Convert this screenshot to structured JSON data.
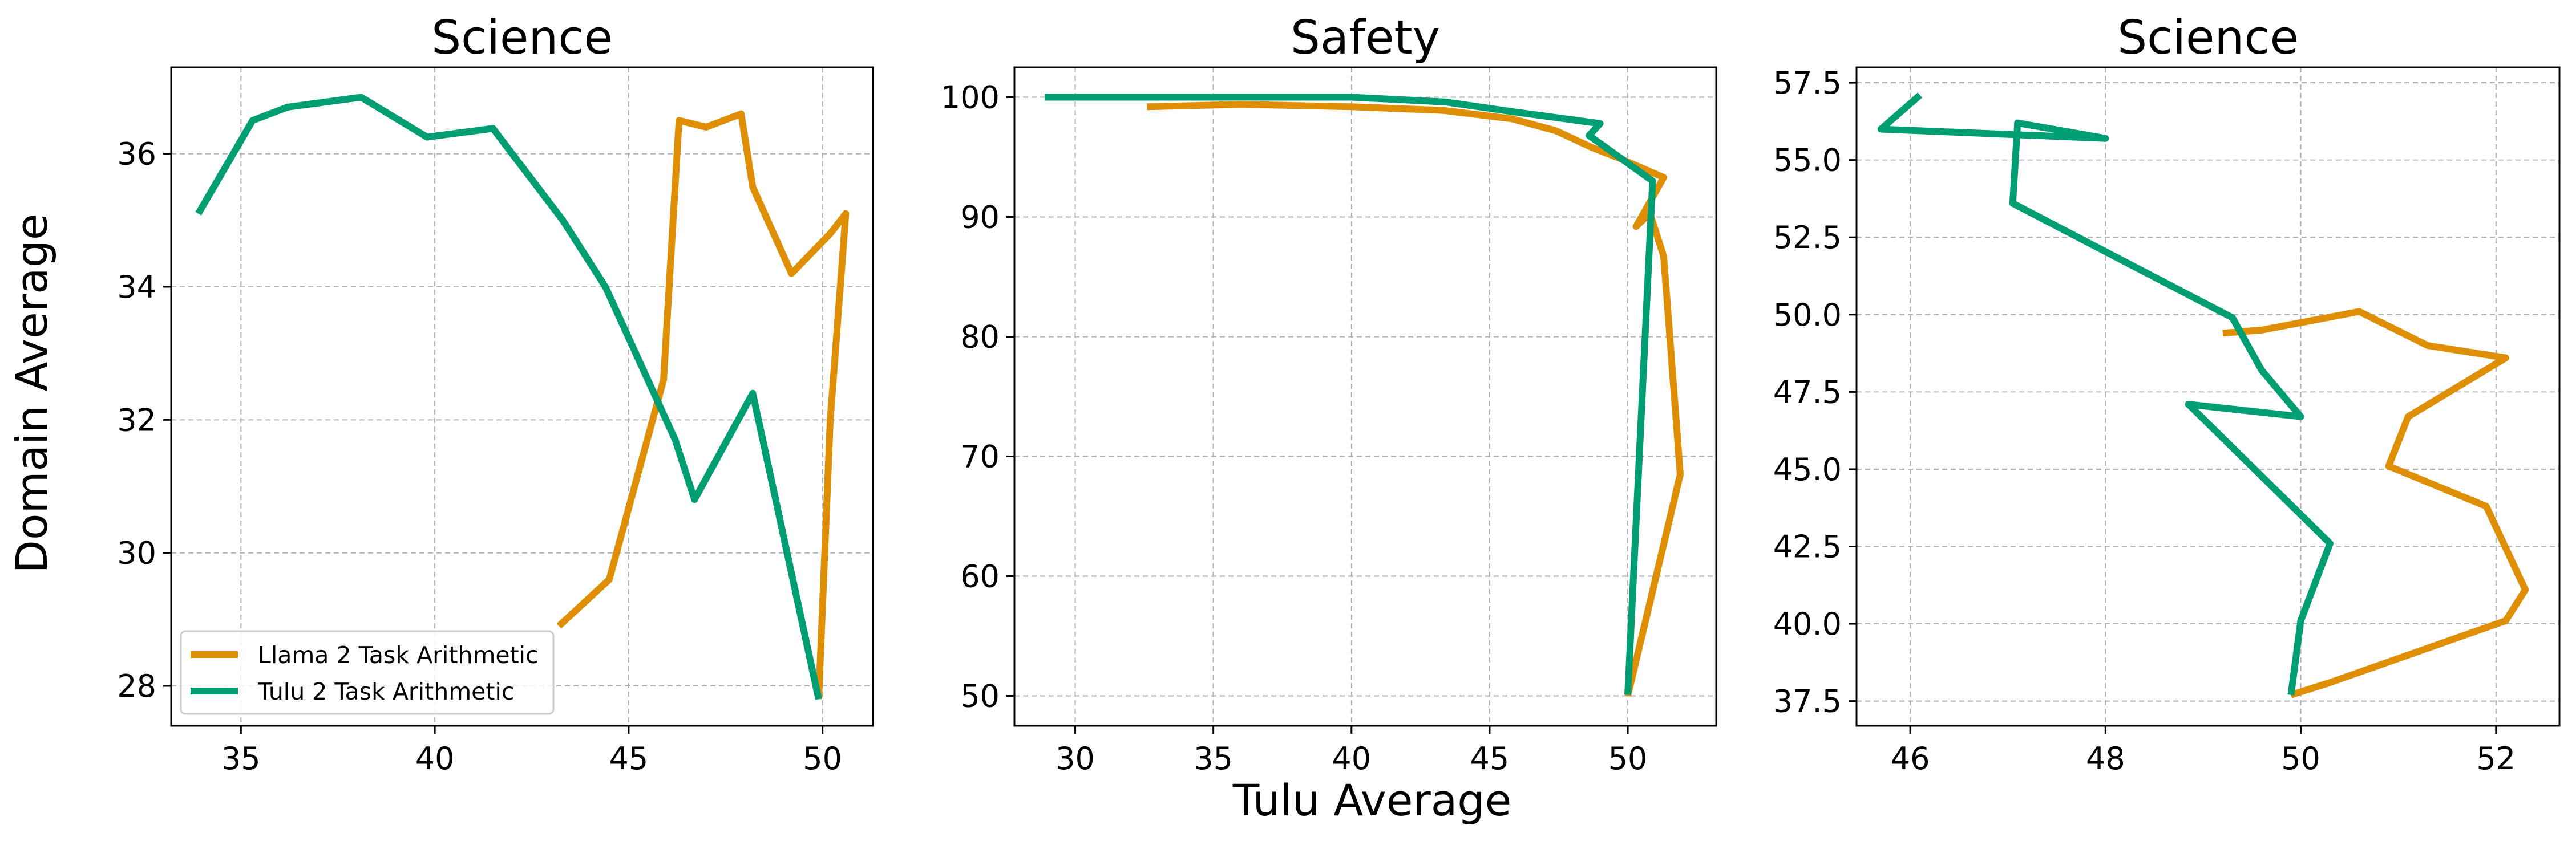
{
  "figure": {
    "ylabel": "Domain Average",
    "xlabel": "Tulu Average"
  },
  "legend": {
    "items": [
      {
        "label": "Llama 2 Task Arithmetic",
        "color": "#de8f05"
      },
      {
        "label": "Tulu 2 Task Arithmetic",
        "color": "#029e73"
      }
    ]
  },
  "chart_data": [
    {
      "type": "line",
      "title": "Science",
      "xlabel": "",
      "ylabel": "Domain Average",
      "xlim": [
        33.2,
        51.3
      ],
      "ylim": [
        27.4,
        37.3
      ],
      "xticks": [
        35,
        40,
        45,
        50
      ],
      "yticks": [
        28,
        30,
        32,
        34,
        36
      ],
      "grid": true,
      "legend_position": "lower-left",
      "series": [
        {
          "name": "Llama 2 Task Arithmetic",
          "color": "#de8f05",
          "points": [
            [
              43.2,
              28.9
            ],
            [
              44.5,
              29.6
            ],
            [
              45.9,
              32.6
            ],
            [
              46.3,
              36.5
            ],
            [
              47.0,
              36.4
            ],
            [
              47.9,
              36.6
            ],
            [
              48.2,
              35.5
            ],
            [
              49.2,
              34.2
            ],
            [
              50.2,
              34.8
            ],
            [
              50.6,
              35.1
            ],
            [
              50.2,
              32.0
            ],
            [
              49.9,
              27.8
            ]
          ]
        },
        {
          "name": "Tulu 2 Task Arithmetic",
          "color": "#029e73",
          "points": [
            [
              33.9,
              35.1
            ],
            [
              35.3,
              36.5
            ],
            [
              36.2,
              36.7
            ],
            [
              38.1,
              36.85
            ],
            [
              39.8,
              36.25
            ],
            [
              41.5,
              36.38
            ],
            [
              43.3,
              35.0
            ],
            [
              44.4,
              34.0
            ],
            [
              46.2,
              31.7
            ],
            [
              46.7,
              30.8
            ],
            [
              48.2,
              32.4
            ],
            [
              49.9,
              27.8
            ]
          ]
        }
      ]
    },
    {
      "type": "line",
      "title": "Safety",
      "xlabel": "Tulu Average",
      "ylabel": "",
      "xlim": [
        27.8,
        53.2
      ],
      "ylim": [
        47.5,
        102.5
      ],
      "xticks": [
        30,
        35,
        40,
        45,
        50
      ],
      "yticks": [
        50,
        60,
        70,
        80,
        90,
        100
      ],
      "grid": true,
      "series": [
        {
          "name": "Llama 2 Task Arithmetic",
          "color": "#de8f05",
          "points": [
            [
              32.6,
              99.2
            ],
            [
              36.0,
              99.4
            ],
            [
              40.0,
              99.2
            ],
            [
              43.3,
              98.9
            ],
            [
              45.8,
              98.2
            ],
            [
              47.4,
              97.2
            ],
            [
              48.7,
              95.8
            ],
            [
              49.7,
              94.9
            ],
            [
              51.3,
              93.3
            ],
            [
              50.3,
              89.2
            ],
            [
              50.8,
              90.3
            ],
            [
              51.3,
              86.7
            ],
            [
              51.9,
              68.5
            ],
            [
              50.0,
              50.0
            ]
          ]
        },
        {
          "name": "Tulu 2 Task Arithmetic",
          "color": "#029e73",
          "points": [
            [
              28.9,
              100.0
            ],
            [
              35.0,
              100.0
            ],
            [
              40.0,
              100.0
            ],
            [
              43.4,
              99.6
            ],
            [
              45.8,
              98.8
            ],
            [
              49.0,
              97.8
            ],
            [
              48.6,
              96.8
            ],
            [
              50.9,
              93.0
            ],
            [
              50.0,
              50.1
            ]
          ]
        }
      ]
    },
    {
      "type": "line",
      "title": "Science",
      "xlabel": "",
      "ylabel": "",
      "xlim": [
        45.45,
        52.65
      ],
      "ylim": [
        36.7,
        58.0
      ],
      "xticks": [
        46,
        48,
        50,
        52
      ],
      "yticks": [
        37.5,
        40.0,
        42.5,
        45.0,
        47.5,
        50.0,
        52.5,
        55.0,
        57.5
      ],
      "ytick_labels": [
        "37.5",
        "40.0",
        "42.5",
        "45.0",
        "47.5",
        "50.0",
        "52.5",
        "55.0",
        "57.5"
      ],
      "grid": true,
      "series": [
        {
          "name": "Llama 2 Task Arithmetic",
          "color": "#de8f05",
          "points": [
            [
              49.2,
              49.4
            ],
            [
              49.6,
              49.5
            ],
            [
              50.6,
              50.1
            ],
            [
              51.3,
              49.0
            ],
            [
              52.1,
              48.6
            ],
            [
              51.1,
              46.7
            ],
            [
              50.9,
              45.1
            ],
            [
              51.9,
              43.8
            ],
            [
              52.3,
              41.1
            ],
            [
              52.1,
              40.1
            ],
            [
              50.3,
              38.1
            ],
            [
              49.9,
              37.7
            ]
          ]
        },
        {
          "name": "Tulu 2 Task Arithmetic",
          "color": "#029e73",
          "points": [
            [
              46.1,
              57.1
            ],
            [
              45.7,
              56.0
            ],
            [
              48.0,
              55.7
            ],
            [
              47.1,
              56.2
            ],
            [
              47.05,
              53.6
            ],
            [
              49.3,
              49.9
            ],
            [
              49.6,
              48.2
            ],
            [
              50.0,
              46.7
            ],
            [
              48.85,
              47.1
            ],
            [
              50.3,
              42.6
            ],
            [
              50.0,
              40.1
            ],
            [
              49.9,
              37.7
            ]
          ]
        }
      ]
    }
  ]
}
